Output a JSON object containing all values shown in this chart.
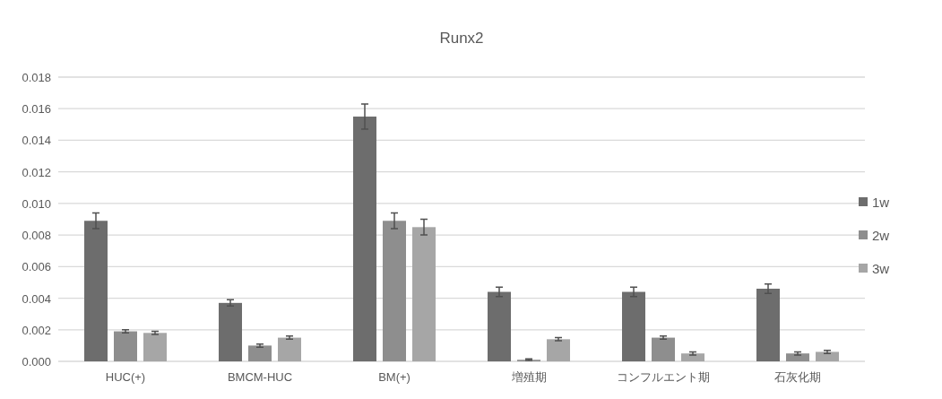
{
  "chart_data": {
    "type": "bar",
    "title": "Runx2",
    "categories": [
      "HUC(+)",
      "BMCM-HUC",
      "BM(+)",
      "増殖期",
      "コンフルエント期",
      "石灰化期"
    ],
    "series": [
      {
        "name": "1w",
        "color": "#6d6d6d",
        "values": [
          0.0089,
          0.0037,
          0.0155,
          0.0044,
          0.0044,
          0.0046
        ],
        "errors": [
          0.0005,
          0.0002,
          0.0008,
          0.0003,
          0.0003,
          0.0003
        ]
      },
      {
        "name": "2w",
        "color": "#8e8e8e",
        "values": [
          0.0019,
          0.001,
          0.0089,
          0.0001,
          0.0015,
          0.0005
        ],
        "errors": [
          0.0001,
          0.0001,
          0.0005,
          5e-05,
          0.0001,
          0.0001
        ]
      },
      {
        "name": "3w",
        "color": "#a6a6a6",
        "values": [
          0.0018,
          0.0015,
          0.0085,
          0.0014,
          0.0005,
          0.0006
        ],
        "errors": [
          0.0001,
          0.0001,
          0.0005,
          0.0001,
          0.0001,
          0.0001
        ]
      }
    ],
    "ylim": [
      0,
      0.018
    ],
    "yticks": [
      {
        "value": 0,
        "label": "0.000"
      },
      {
        "value": 0.002,
        "label": "0.002"
      },
      {
        "value": 0.004,
        "label": "0.004"
      },
      {
        "value": 0.006,
        "label": "0.006"
      },
      {
        "value": 0.008,
        "label": "0.008"
      },
      {
        "value": 0.01,
        "label": "0.010"
      },
      {
        "value": 0.012,
        "label": "0.012"
      },
      {
        "value": 0.014,
        "label": "0.014"
      },
      {
        "value": 0.016,
        "label": "0.016"
      },
      {
        "value": 0.018,
        "label": "0.018"
      }
    ],
    "grid": "y",
    "legend": "right"
  }
}
